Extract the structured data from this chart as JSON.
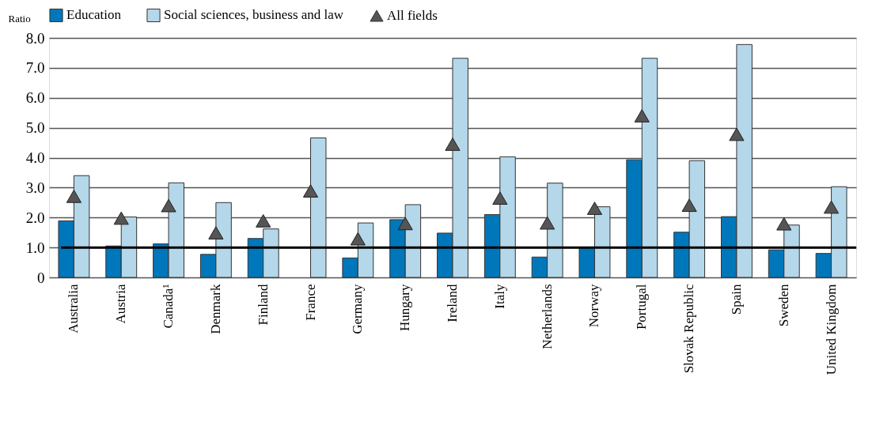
{
  "chart_data": {
    "type": "bar",
    "ylabel": "Ratio",
    "categories": [
      "Australia",
      "Austria",
      "Canada¹",
      "Denmark",
      "Finland",
      "France",
      "Germany",
      "Hungary",
      "Ireland",
      "Italy",
      "Netherlands",
      "Norway",
      "Portugal",
      "Slovak Republic",
      "Spain",
      "Sweden",
      "United Kingdom"
    ],
    "series": [
      {
        "name": "Education",
        "color": "#0077bb",
        "values": [
          1.89,
          1.05,
          1.12,
          0.77,
          1.3,
          null,
          0.65,
          1.93,
          1.48,
          2.1,
          0.68,
          1.01,
          3.93,
          1.51,
          2.03,
          0.92,
          0.8
        ]
      },
      {
        "name": "Social sciences, business and law",
        "color": "#b4d7ea",
        "values": [
          3.4,
          2.02,
          3.16,
          2.5,
          1.62,
          4.66,
          1.82,
          2.43,
          7.32,
          4.03,
          3.15,
          2.36,
          7.32,
          3.9,
          7.78,
          1.75,
          3.03
        ]
      },
      {
        "name": "All fields",
        "type": "scatter",
        "marker": "triangle",
        "color": "#555555",
        "values": [
          2.71,
          1.98,
          2.4,
          1.49,
          1.89,
          2.89,
          1.29,
          1.8,
          4.45,
          2.65,
          1.82,
          2.31,
          5.4,
          2.41,
          4.78,
          1.79,
          2.35
        ]
      }
    ],
    "ylim": [
      0,
      8
    ],
    "yticks": [
      {
        "value": 0,
        "label": "0"
      },
      {
        "value": 1,
        "label": "1.0"
      },
      {
        "value": 2,
        "label": "2.0"
      },
      {
        "value": 3,
        "label": "3.0"
      },
      {
        "value": 4,
        "label": "4.0"
      },
      {
        "value": 5,
        "label": "5.0"
      },
      {
        "value": 6,
        "label": "6.0"
      },
      {
        "value": 7,
        "label": "7.0"
      },
      {
        "value": 8,
        "label": "8.0"
      }
    ],
    "grid": "y",
    "legend": "top",
    "ref_lines": [
      {
        "axis": "y",
        "value": 1.0,
        "color": "#000000"
      }
    ]
  }
}
